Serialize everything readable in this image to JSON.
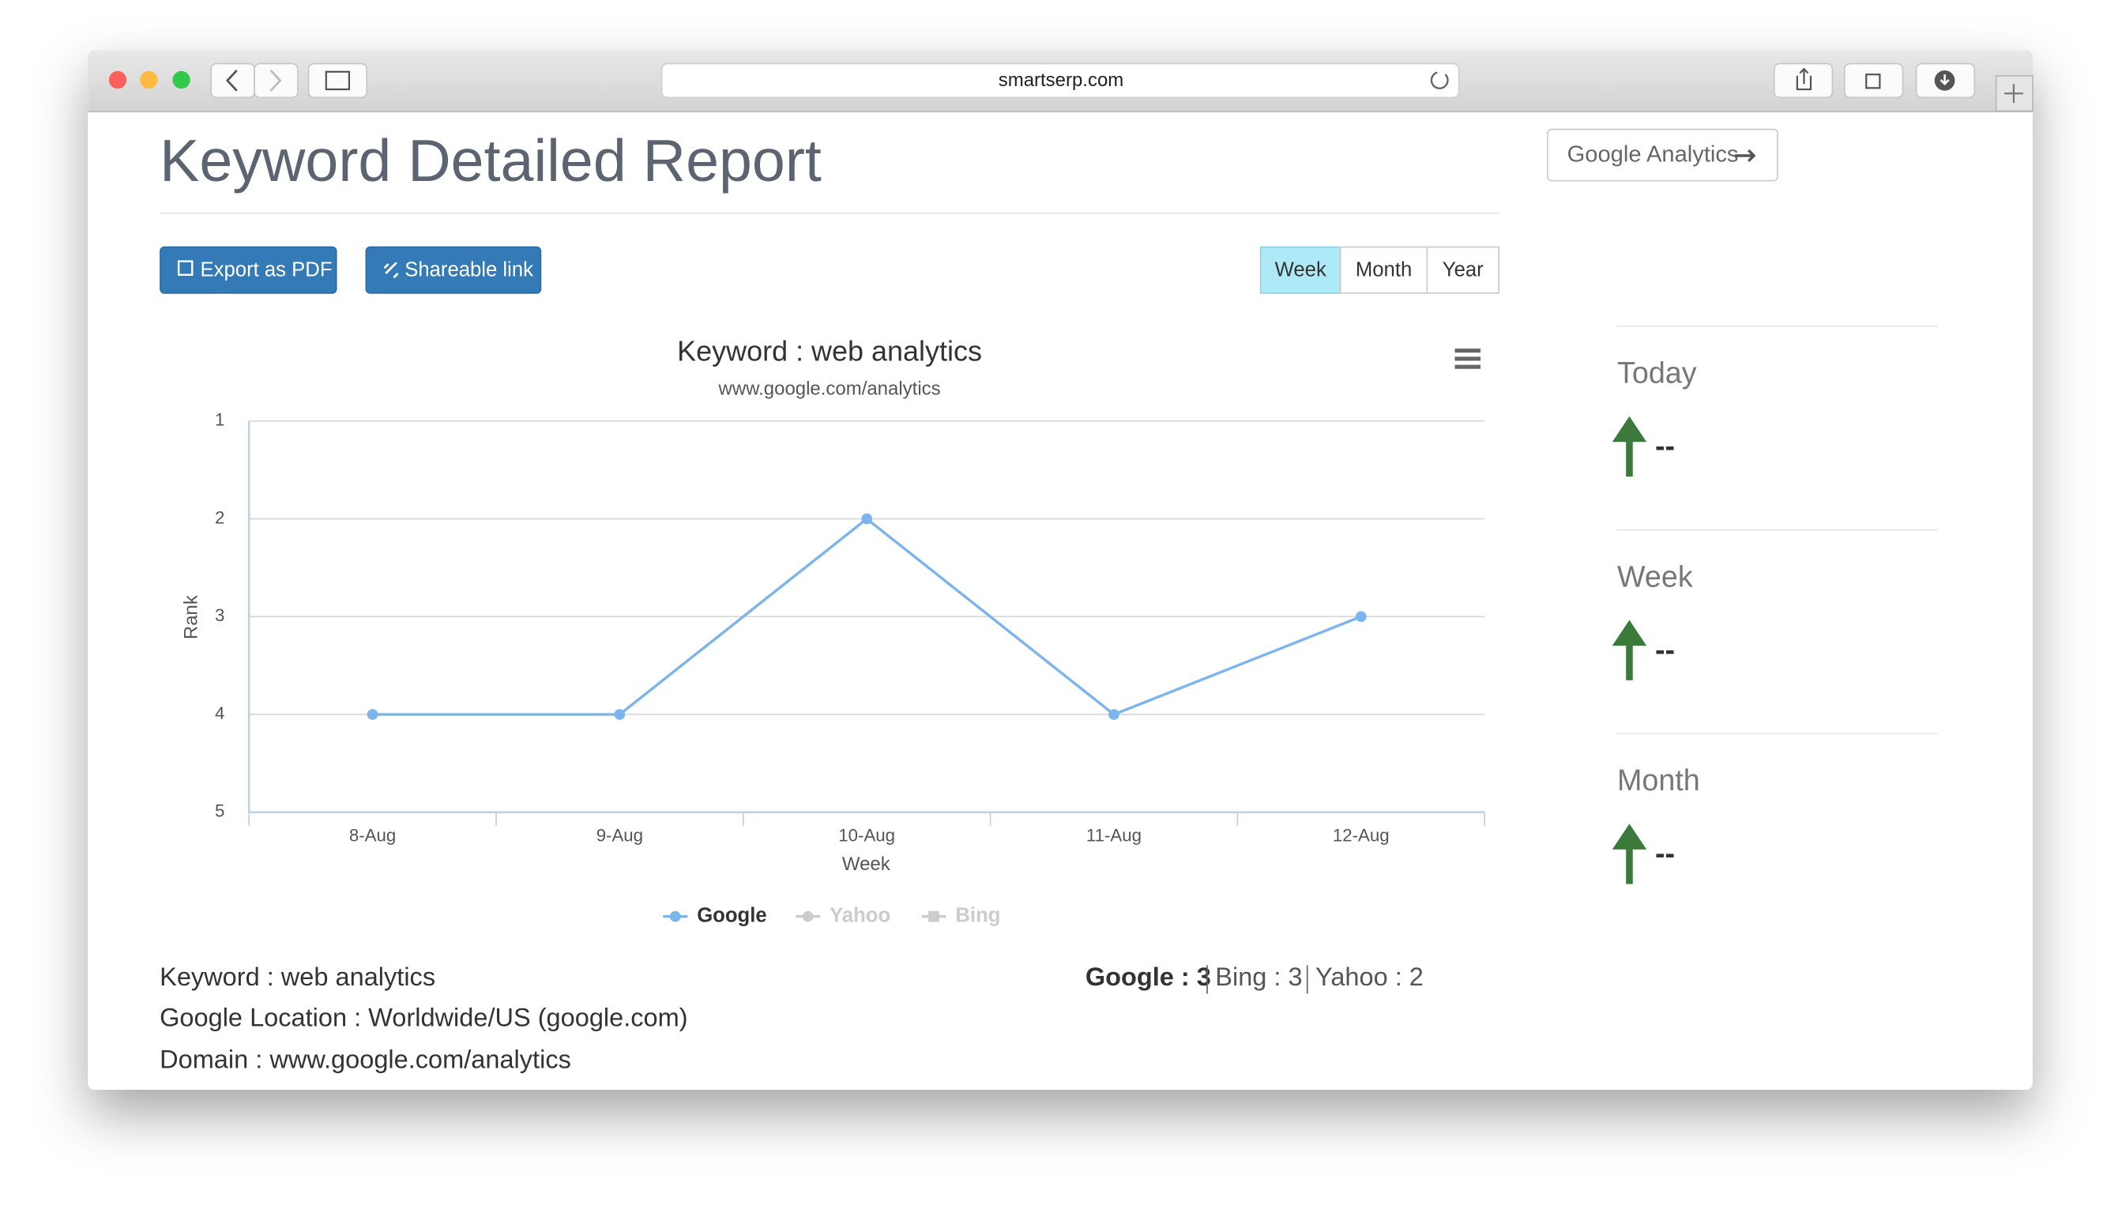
{
  "browser": {
    "url": "smartserp.com"
  },
  "header": {
    "title": "Keyword Detailed Report",
    "analytics_button": "Google Analytics"
  },
  "toolbar": {
    "export": "Export as PDF",
    "share": "Shareable link",
    "periods": [
      "Week",
      "Month",
      "Year"
    ],
    "active_period": "Week"
  },
  "chart_data": {
    "type": "line",
    "title": "Keyword : web analytics",
    "subtitle": "www.google.com/analytics",
    "x_label": "Week",
    "y_label": "Rank",
    "categories": [
      "8-Aug",
      "9-Aug",
      "10-Aug",
      "11-Aug",
      "12-Aug"
    ],
    "series": [
      {
        "name": "Google",
        "color": "#7cb5ec",
        "visible": true,
        "values": [
          4,
          4,
          2,
          4,
          3
        ]
      },
      {
        "name": "Yahoo",
        "color": "#434348",
        "visible": false,
        "values": [
          null,
          null,
          null,
          null,
          null
        ]
      },
      {
        "name": "Bing",
        "color": "#90ed7d",
        "visible": false,
        "values": [
          null,
          null,
          null,
          null,
          null
        ]
      }
    ],
    "ylim": [
      5,
      1
    ],
    "yticks": [
      1,
      2,
      3,
      4,
      5
    ],
    "grid": true,
    "legend": "bottom"
  },
  "details": {
    "keyword": "Keyword : web analytics",
    "location": "Google Location : Worldwide/US (google.com)",
    "domain": "Domain : www.google.com/analytics"
  },
  "ranks": [
    "Google : 3",
    "Bing : 3",
    "Yahoo : 2"
  ],
  "changes": [
    {
      "period": "Today",
      "value": "--"
    },
    {
      "period": "Week",
      "value": "--"
    },
    {
      "period": "Month",
      "value": "--"
    }
  ]
}
